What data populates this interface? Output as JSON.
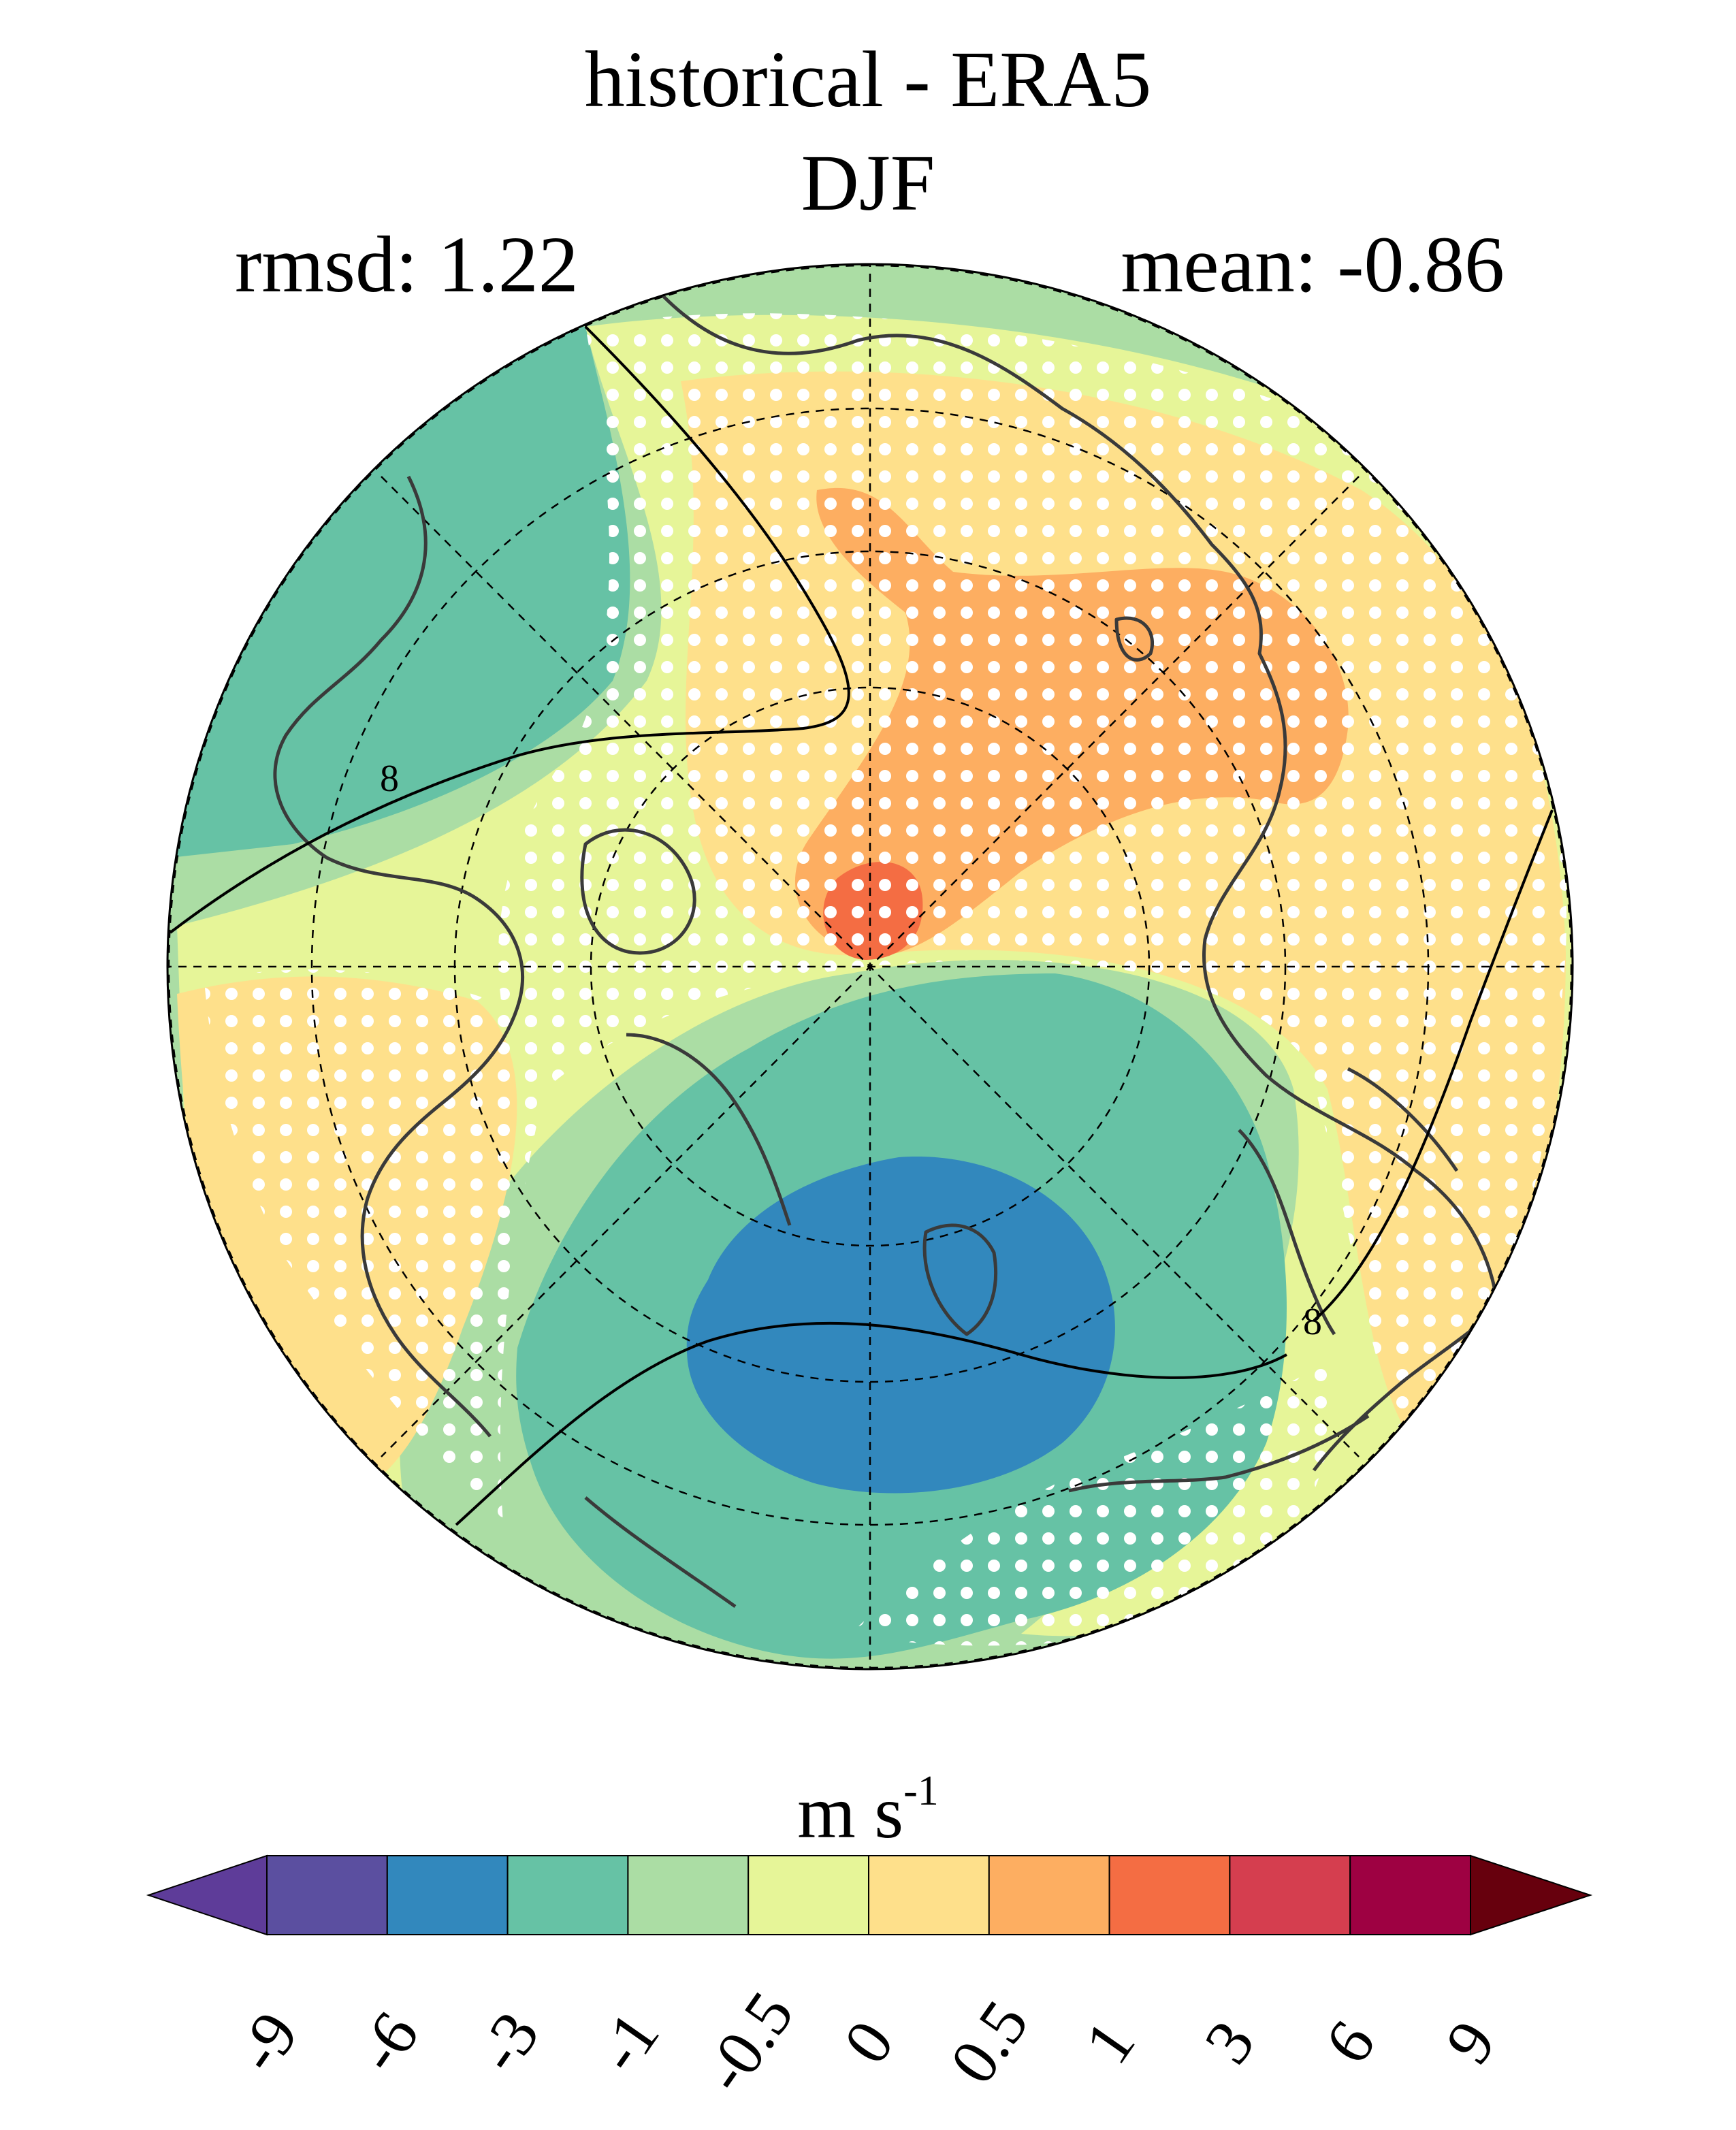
{
  "title": "historical - ERA5",
  "subtitle": "DJF",
  "stats": {
    "rmsd_label": "rmsd: 1.22",
    "mean_label": "mean: -0.86"
  },
  "colorbar": {
    "units_base": "m s",
    "units_exp": "-1",
    "ticks": [
      "-9",
      "-6",
      "-3",
      "-1",
      "-0.5",
      "0",
      "0.5",
      "1",
      "3",
      "6",
      "9"
    ],
    "colors": [
      "#5e3c99",
      "#5b4fa0",
      "#3288bd",
      "#66c2a5",
      "#abdda4",
      "#e6f598",
      "#fee08b",
      "#fdae61",
      "#f46d43",
      "#d53e4f",
      "#9e0142",
      "#67000d"
    ],
    "extend": "both"
  },
  "map": {
    "projection": "north-polar-stereographic",
    "contour_label": "8",
    "fill_colors": {
      "background": "#abdda4",
      "teal": "#66c2a5",
      "lightgreen": "#abdda4",
      "yellow": "#e6f598",
      "paleorange": "#fee08b",
      "orange": "#fdae61",
      "red": "#f46d43",
      "blue": "#3288bd"
    },
    "stipple_color": "#ffffff",
    "coastline_color": "#3a3a3a"
  }
}
